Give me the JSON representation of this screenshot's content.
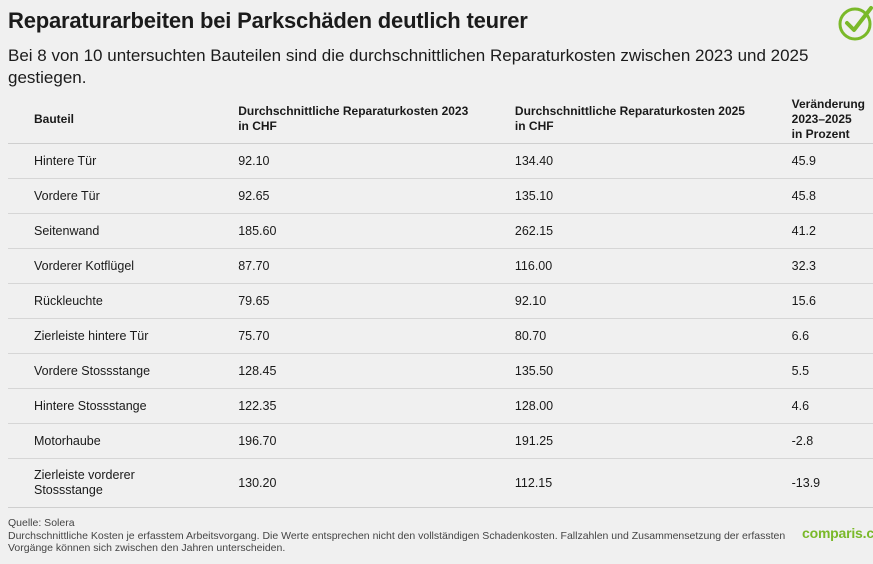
{
  "title": "Reparaturarbeiten bei Parkschäden deutlich teurer",
  "subtitle": "Bei 8 von 10 untersuchten Bauteilen sind die durchschnittlichen Reparaturkosten zwischen 2023 und 2025 gestiegen.",
  "brand": "comparis.ch",
  "colors": {
    "accent": "#7ab929",
    "background": "#f0f0f0"
  },
  "icons": {
    "logo": "checkmark-circle-icon"
  },
  "chart_data": {
    "type": "table",
    "columns": [
      "Bauteil",
      "Durchschnittliche Reparaturkosten 2023 in CHF",
      "Durchschnittliche Reparaturkosten 2025 in CHF",
      "Veränderung 2023–2025 in Prozent"
    ],
    "rows": [
      [
        "Hintere Tür",
        "92.10",
        "134.40",
        "45.9"
      ],
      [
        "Vordere Tür",
        "92.65",
        "135.10",
        "45.8"
      ],
      [
        "Seitenwand",
        "185.60",
        "262.15",
        "41.2"
      ],
      [
        "Vorderer Kotflügel",
        "87.70",
        "116.00",
        "32.3"
      ],
      [
        "Rückleuchte",
        "79.65",
        "92.10",
        "15.6"
      ],
      [
        "Zierleiste hintere Tür",
        "75.70",
        "80.70",
        "6.6"
      ],
      [
        "Vordere Stossstange",
        "128.45",
        "135.50",
        "5.5"
      ],
      [
        "Hintere Stossstange",
        "122.35",
        "128.00",
        "4.6"
      ],
      [
        "Motorhaube",
        "196.70",
        "191.25",
        "-2.8"
      ],
      [
        "Zierleiste vorderer Stossstange",
        "130.20",
        "112.15",
        "-13.9"
      ]
    ]
  },
  "footer": {
    "source": "Quelle: Solera",
    "note": "Durchschnittliche Kosten je erfasstem Arbeitsvorgang. Die Werte entsprechen nicht den vollständigen Schadenkosten. Fallzahlen und Zusammensetzung der erfassten Vorgänge können sich zwischen den Jahren unterscheiden."
  }
}
